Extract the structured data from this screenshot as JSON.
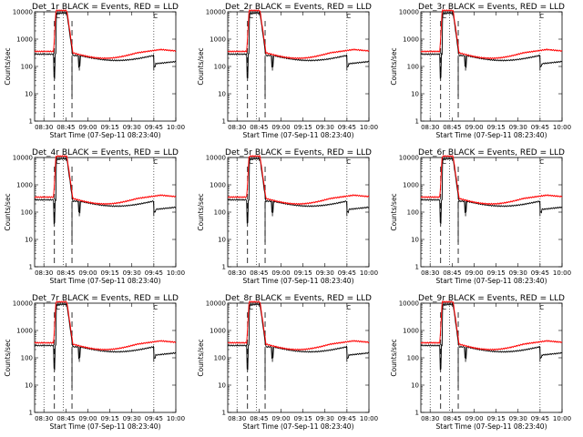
{
  "chart_data": [
    {
      "type": "line",
      "title": "Det_1r BLACK = Events, RED = LLD",
      "xlabel": "Start Time (07-Sep-11 08:23:40)",
      "ylabel": "Counts/sec",
      "yscale": "log",
      "ylim": [
        1,
        10000
      ],
      "x_ticks": [
        "08:30",
        "08:45",
        "09:00",
        "09:15",
        "09:30",
        "09:45",
        "10:00"
      ],
      "y_ticks": [
        "1",
        "10",
        "100",
        "1000",
        "10000"
      ],
      "series": [
        {
          "name": "BLACK = Events",
          "color": "#000000"
        },
        {
          "name": "RED = LLD",
          "color": "#ff0000"
        }
      ],
      "annotations": [
        "C",
        "C"
      ]
    },
    {
      "type": "line",
      "title": "Det_2r BLACK = Events, RED = LLD",
      "xlabel": "Start Time (07-Sep-11 08:23:40)",
      "ylabel": "Counts/sec",
      "yscale": "log",
      "ylim": [
        1,
        10000
      ],
      "x_ticks": [
        "08:30",
        "08:45",
        "09:00",
        "09:15",
        "09:30",
        "09:45",
        "10:00"
      ],
      "y_ticks": [
        "1",
        "10",
        "100",
        "1000",
        "10000"
      ],
      "series": [
        {
          "name": "BLACK = Events",
          "color": "#000000"
        },
        {
          "name": "RED = LLD",
          "color": "#ff0000"
        }
      ],
      "annotations": [
        "C",
        "C"
      ]
    },
    {
      "type": "line",
      "title": "Det_3r BLACK = Events, RED = LLD",
      "xlabel": "Start Time (07-Sep-11 08:23:40)",
      "ylabel": "Counts/sec",
      "yscale": "log",
      "ylim": [
        1,
        10000
      ],
      "x_ticks": [
        "08:30",
        "08:45",
        "09:00",
        "09:15",
        "09:30",
        "09:45",
        "10:00"
      ],
      "y_ticks": [
        "1",
        "10",
        "100",
        "1000",
        "10000"
      ],
      "series": [
        {
          "name": "BLACK = Events",
          "color": "#000000"
        },
        {
          "name": "RED = LLD",
          "color": "#ff0000"
        }
      ],
      "annotations": [
        "C",
        "C"
      ]
    },
    {
      "type": "line",
      "title": "Det_4r BLACK = Events, RED = LLD",
      "xlabel": "Start Time (07-Sep-11 08:23:40)",
      "ylabel": "Counts/sec",
      "yscale": "log",
      "ylim": [
        1,
        10000
      ],
      "x_ticks": [
        "08:30",
        "08:45",
        "09:00",
        "09:15",
        "09:30",
        "09:45",
        "10:00"
      ],
      "y_ticks": [
        "1",
        "10",
        "100",
        "1000",
        "10000"
      ],
      "series": [
        {
          "name": "BLACK = Events",
          "color": "#000000"
        },
        {
          "name": "RED = LLD",
          "color": "#ff0000"
        }
      ],
      "annotations": [
        "C",
        "C"
      ]
    },
    {
      "type": "line",
      "title": "Det_5r BLACK = Events, RED = LLD",
      "xlabel": "Start Time (07-Sep-11 08:23:40)",
      "ylabel": "Counts/sec",
      "yscale": "log",
      "ylim": [
        1,
        10000
      ],
      "x_ticks": [
        "08:30",
        "08:45",
        "09:00",
        "09:15",
        "09:30",
        "09:45",
        "10:00"
      ],
      "y_ticks": [
        "1",
        "10",
        "100",
        "1000",
        "10000"
      ],
      "series": [
        {
          "name": "BLACK = Events",
          "color": "#000000"
        },
        {
          "name": "RED = LLD",
          "color": "#ff0000"
        }
      ],
      "annotations": [
        "C",
        "C"
      ]
    },
    {
      "type": "line",
      "title": "Det_6r BLACK = Events, RED = LLD",
      "xlabel": "Start Time (07-Sep-11 08:23:40)",
      "ylabel": "Counts/sec",
      "yscale": "log",
      "ylim": [
        1,
        10000
      ],
      "x_ticks": [
        "08:30",
        "08:45",
        "09:00",
        "09:15",
        "09:30",
        "09:45",
        "10:00"
      ],
      "y_ticks": [
        "1",
        "10",
        "100",
        "1000",
        "10000"
      ],
      "series": [
        {
          "name": "BLACK = Events",
          "color": "#000000"
        },
        {
          "name": "RED = LLD",
          "color": "#ff0000"
        }
      ],
      "annotations": [
        "C",
        "C"
      ]
    },
    {
      "type": "line",
      "title": "Det_7r BLACK = Events, RED = LLD",
      "xlabel": "Start Time (07-Sep-11 08:23:40)",
      "ylabel": "Counts/sec",
      "yscale": "log",
      "ylim": [
        1,
        10000
      ],
      "x_ticks": [
        "08:30",
        "08:45",
        "09:00",
        "09:15",
        "09:30",
        "09:45",
        "10:00"
      ],
      "y_ticks": [
        "1",
        "10",
        "100",
        "1000",
        "10000"
      ],
      "series": [
        {
          "name": "BLACK = Events",
          "color": "#000000"
        },
        {
          "name": "RED = LLD",
          "color": "#ff0000"
        }
      ],
      "annotations": [
        "C",
        "C"
      ]
    },
    {
      "type": "line",
      "title": "Det_8r BLACK = Events, RED = LLD",
      "xlabel": "Start Time (07-Sep-11 08:23:40)",
      "ylabel": "Counts/sec",
      "yscale": "log",
      "ylim": [
        1,
        10000
      ],
      "x_ticks": [
        "08:30",
        "08:45",
        "09:00",
        "09:15",
        "09:30",
        "09:45",
        "10:00"
      ],
      "y_ticks": [
        "1",
        "10",
        "100",
        "1000",
        "10000"
      ],
      "series": [
        {
          "name": "BLACK = Events",
          "color": "#000000"
        },
        {
          "name": "RED = LLD",
          "color": "#ff0000"
        }
      ],
      "annotations": [
        "C",
        "C"
      ]
    },
    {
      "type": "line",
      "title": "Det_9r BLACK = Events, RED = LLD",
      "xlabel": "Start Time (07-Sep-11 08:23:40)",
      "ylabel": "Counts/sec",
      "yscale": "log",
      "ylim": [
        1,
        10000
      ],
      "x_ticks": [
        "08:30",
        "08:45",
        "09:00",
        "09:15",
        "09:30",
        "09:45",
        "10:00"
      ],
      "y_ticks": [
        "1",
        "10",
        "100",
        "1000",
        "10000"
      ],
      "series": [
        {
          "name": "BLACK = Events",
          "color": "#000000"
        },
        {
          "name": "RED = LLD",
          "color": "#ff0000"
        }
      ],
      "annotations": [
        "C",
        "C"
      ]
    }
  ]
}
